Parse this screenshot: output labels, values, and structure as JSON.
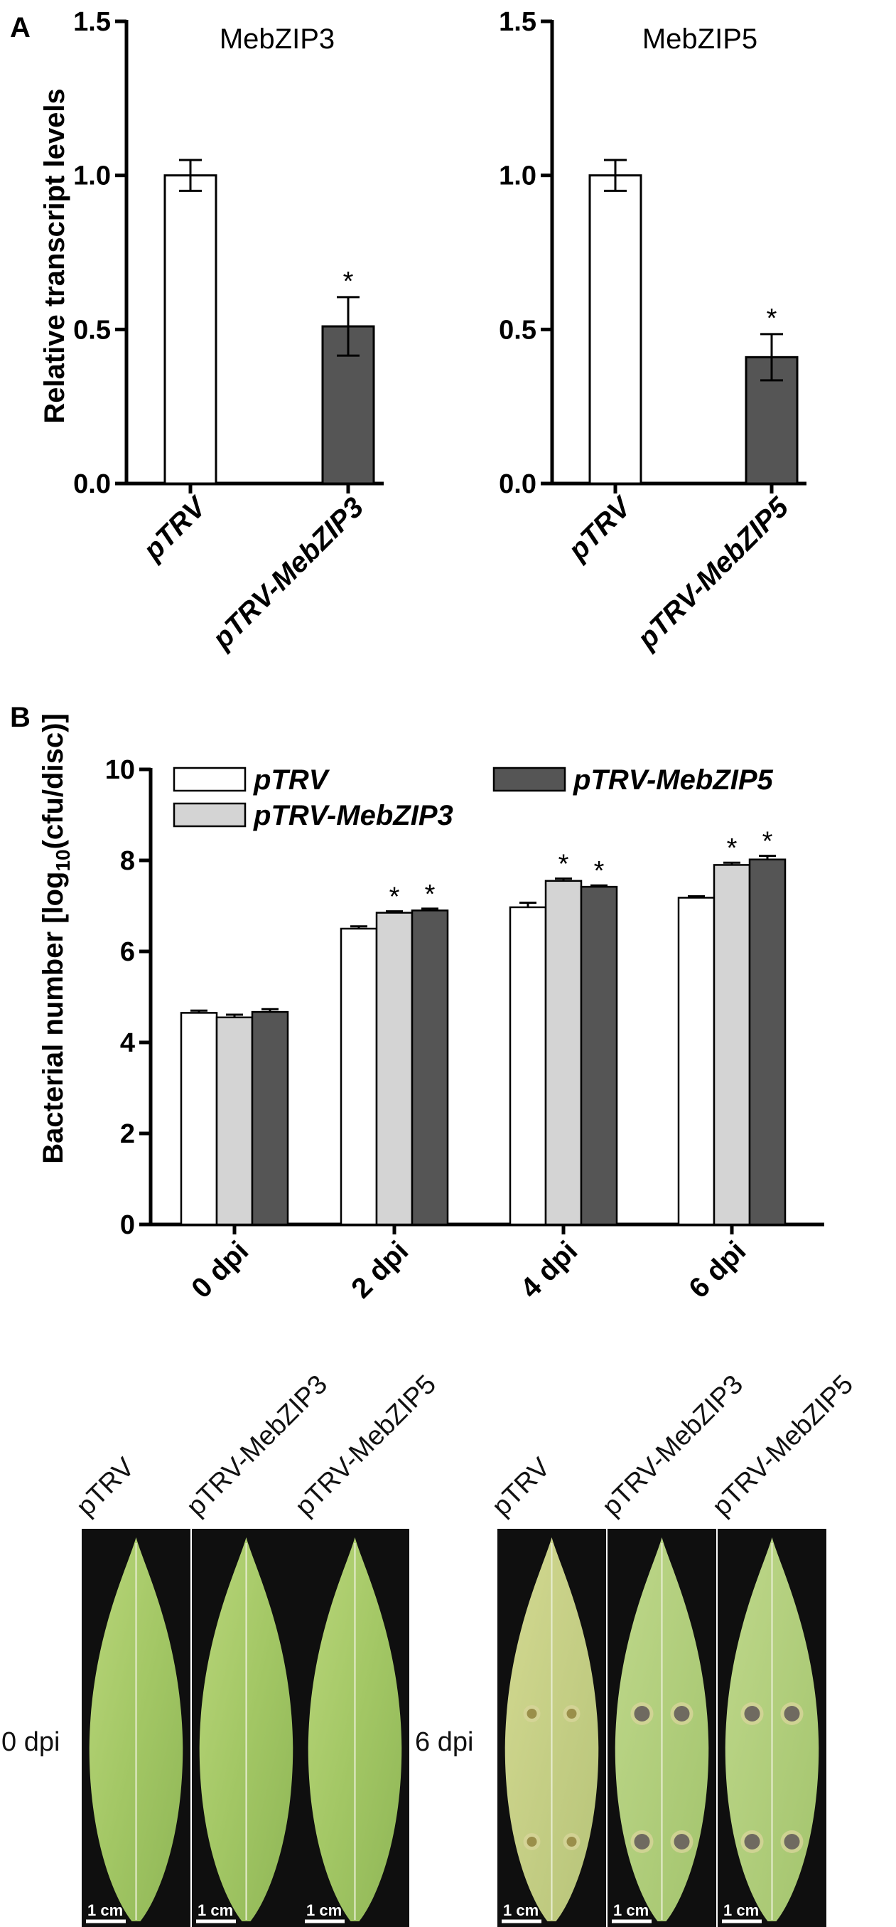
{
  "panels": {
    "a": "A",
    "b": "B"
  },
  "chart_data": [
    {
      "type": "bar",
      "title": "MebZIP3",
      "ylabel": "Relative transcript levels",
      "ylim": [
        0,
        1.5
      ],
      "yticks": [
        "0.0",
        "0.5",
        "1.0",
        "1.5"
      ],
      "categories": [
        "pTRV",
        "pTRV-MebZIP3"
      ],
      "values": [
        1.0,
        0.51
      ],
      "errors": [
        0.05,
        0.095
      ],
      "significance": [
        "",
        "*"
      ],
      "colors": [
        "#ffffff",
        "#555555"
      ]
    },
    {
      "type": "bar",
      "title": "MebZIP5",
      "ylabel": "",
      "ylim": [
        0,
        1.5
      ],
      "yticks": [
        "0.0",
        "0.5",
        "1.0",
        "1.5"
      ],
      "categories": [
        "pTRV",
        "pTRV-MebZIP5"
      ],
      "values": [
        1.0,
        0.41
      ],
      "errors": [
        0.05,
        0.075
      ],
      "significance": [
        "",
        "*"
      ],
      "colors": [
        "#ffffff",
        "#555555"
      ]
    },
    {
      "type": "bar",
      "ylabel": "Bacterial number [log10(cfu/disc)]",
      "ylim": [
        0,
        10
      ],
      "yticks": [
        "0",
        "2",
        "4",
        "6",
        "8",
        "10"
      ],
      "categories": [
        "0 dpi",
        "2 dpi",
        "4 dpi",
        "6 dpi"
      ],
      "legend_position": "top",
      "series": [
        {
          "name": "pTRV",
          "color": "#ffffff",
          "values": [
            4.65,
            6.5,
            6.97,
            7.18
          ],
          "errors": [
            0.05,
            0.05,
            0.1,
            0.03
          ],
          "significance": [
            "",
            "",
            "",
            ""
          ]
        },
        {
          "name": "pTRV-MebZIP3",
          "color": "#d4d4d4",
          "values": [
            4.55,
            6.85,
            7.55,
            7.9
          ],
          "errors": [
            0.06,
            0.03,
            0.05,
            0.05
          ],
          "significance": [
            "",
            "*",
            "*",
            "*"
          ]
        },
        {
          "name": "pTRV-MebZIP5",
          "color": "#555555",
          "values": [
            4.67,
            6.9,
            7.42,
            8.02
          ],
          "errors": [
            0.06,
            0.04,
            0.03,
            0.08
          ],
          "significance": [
            "",
            "*",
            "*",
            "*"
          ]
        }
      ]
    }
  ],
  "photos": {
    "groups": [
      {
        "dpi_label": "0 dpi",
        "leaves": [
          {
            "label": "pTRV",
            "scale": "1 cm"
          },
          {
            "label": "pTRV-MebZIP3",
            "scale": "1 cm"
          },
          {
            "label": "pTRV-MebZIP5",
            "scale": "1 cm"
          }
        ]
      },
      {
        "dpi_label": "6 dpi",
        "leaves": [
          {
            "label": "pTRV",
            "scale": "1 cm"
          },
          {
            "label": "pTRV-MebZIP3",
            "scale": "1 cm"
          },
          {
            "label": "pTRV-MebZIP5",
            "scale": "1 cm"
          }
        ]
      }
    ]
  }
}
